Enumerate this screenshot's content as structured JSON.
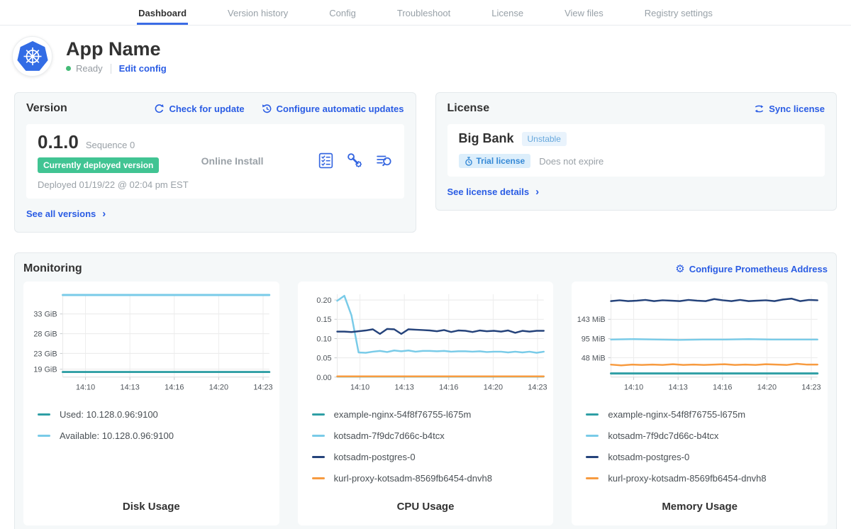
{
  "nav": {
    "tabs": [
      {
        "label": "Dashboard",
        "active": true
      },
      {
        "label": "Version history",
        "active": false
      },
      {
        "label": "Config",
        "active": false
      },
      {
        "label": "Troubleshoot",
        "active": false
      },
      {
        "label": "License",
        "active": false
      },
      {
        "label": "View files",
        "active": false
      },
      {
        "label": "Registry settings",
        "active": false
      }
    ]
  },
  "app_header": {
    "title": "App Name",
    "status_label": "Ready",
    "edit_config_label": "Edit config",
    "logo": "kubernetes-logo"
  },
  "version_card": {
    "title": "Version",
    "check_update_label": "Check for update",
    "configure_updates_label": "Configure automatic updates",
    "version_number": "0.1.0",
    "sequence_label": "Sequence 0",
    "deployed_badge": "Currently deployed version",
    "install_type": "Online Install",
    "deployed_at": "Deployed 01/19/22 @ 02:04 pm EST",
    "action_icons": [
      "preflight-checks-icon",
      "config-tools-icon",
      "view-logs-icon"
    ],
    "see_all_label": "See all versions",
    "chevron": "›"
  },
  "license_card": {
    "title": "License",
    "sync_label": "Sync license",
    "customer_name": "Big Bank",
    "channel_badge": "Unstable",
    "trial_badge": "Trial license",
    "expiry_text": "Does not expire",
    "see_details_label": "See license details",
    "chevron": "›"
  },
  "monitoring": {
    "title": "Monitoring",
    "configure_label": "Configure Prometheus Address",
    "gear_glyph": "⚙"
  },
  "theme": {
    "accent_blue": "#2a5ce4",
    "deployed_green": "#41c493",
    "ready_green": "#44bb77",
    "teal": "#2f9fa5",
    "light_blue": "#79cbe8",
    "navy": "#25437b",
    "orange": "#f79b40",
    "panel_bg": "#f5f8f9"
  },
  "chart_data": [
    {
      "type": "line",
      "title": "Disk Usage",
      "ylim": [
        17,
        38
      ],
      "yticks": [
        {
          "v": 19,
          "label": "19 GiB"
        },
        {
          "v": 23,
          "label": "23 GiB"
        },
        {
          "v": 28,
          "label": "28 GiB"
        },
        {
          "v": 33,
          "label": "33 GiB"
        }
      ],
      "xticks": [
        "14:10",
        "14:13",
        "14:16",
        "14:20",
        "14:23"
      ],
      "series": [
        {
          "name": "Used: 10.128.0.96:9100",
          "color": "#2f9fa5",
          "width": 3,
          "values": [
            18.3,
            18.3
          ]
        },
        {
          "name": "Available: 10.128.0.96:9100",
          "color": "#79cbe8",
          "width": 3,
          "values": [
            37.8,
            37.8
          ]
        }
      ]
    },
    {
      "type": "line",
      "title": "CPU Usage",
      "ylim": [
        0,
        0.215
      ],
      "yticks": [
        {
          "v": 0.0,
          "label": "0.00"
        },
        {
          "v": 0.05,
          "label": "0.05"
        },
        {
          "v": 0.1,
          "label": "0.10"
        },
        {
          "v": 0.15,
          "label": "0.15"
        },
        {
          "v": 0.2,
          "label": "0.20"
        }
      ],
      "xticks": [
        "14:10",
        "14:13",
        "14:16",
        "14:20",
        "14:23"
      ],
      "series": [
        {
          "name": "example-nginx-54f8f76755-l675m",
          "color": "#2f9fa5",
          "width": 2,
          "values": [
            0.001,
            0.001
          ]
        },
        {
          "name": "kotsadm-7f9dc7d66c-b4tcx",
          "color": "#79cbe8",
          "width": 2.5,
          "values": [
            0.198,
            0.211,
            0.16,
            0.064,
            0.063,
            0.066,
            0.068,
            0.065,
            0.069,
            0.067,
            0.069,
            0.066,
            0.068,
            0.068,
            0.067,
            0.068,
            0.066,
            0.067,
            0.067,
            0.066,
            0.067,
            0.065,
            0.066,
            0.066,
            0.064,
            0.066,
            0.064,
            0.066,
            0.063,
            0.066
          ]
        },
        {
          "name": "kotsadm-postgres-0",
          "color": "#25437b",
          "width": 2.5,
          "values": [
            0.118,
            0.118,
            0.117,
            0.119,
            0.121,
            0.124,
            0.112,
            0.125,
            0.124,
            0.112,
            0.124,
            0.123,
            0.122,
            0.121,
            0.119,
            0.122,
            0.117,
            0.121,
            0.12,
            0.117,
            0.121,
            0.119,
            0.12,
            0.118,
            0.121,
            0.115,
            0.12,
            0.118,
            0.12,
            0.12
          ]
        },
        {
          "name": "kurl-proxy-kotsadm-8569fb6454-dnvh8",
          "color": "#f79b40",
          "width": 2.5,
          "values": [
            0.002,
            0.002
          ]
        }
      ]
    },
    {
      "type": "line",
      "title": "Memory Usage",
      "ylim": [
        0,
        205
      ],
      "yticks": [
        {
          "v": 48,
          "label": "48 MiB"
        },
        {
          "v": 95,
          "label": "95 MiB"
        },
        {
          "v": 143,
          "label": "143 MiB"
        }
      ],
      "xticks": [
        "14:10",
        "14:13",
        "14:16",
        "14:20",
        "14:23"
      ],
      "series": [
        {
          "name": "example-nginx-54f8f76755-l675m",
          "color": "#2f9fa5",
          "width": 3,
          "values": [
            9,
            9
          ]
        },
        {
          "name": "kotsadm-7f9dc7d66c-b4tcx",
          "color": "#79cbe8",
          "width": 2.5,
          "values": [
            93,
            94,
            93,
            92,
            93,
            93,
            94,
            93,
            93,
            93
          ]
        },
        {
          "name": "kotsadm-postgres-0",
          "color": "#25437b",
          "width": 2.5,
          "values": [
            188,
            190,
            188,
            189,
            191,
            188,
            190,
            189,
            188,
            191,
            189,
            188,
            193,
            190,
            188,
            191,
            188,
            189,
            190,
            188,
            192,
            194,
            188,
            191,
            190
          ]
        },
        {
          "name": "kurl-proxy-kotsadm-8569fb6454-dnvh8",
          "color": "#f79b40",
          "width": 2.5,
          "values": [
            31,
            29,
            31,
            30,
            31,
            30,
            32,
            30,
            31,
            30,
            31,
            32,
            30,
            31,
            30,
            32,
            31,
            30,
            33,
            31,
            31
          ]
        }
      ]
    }
  ]
}
